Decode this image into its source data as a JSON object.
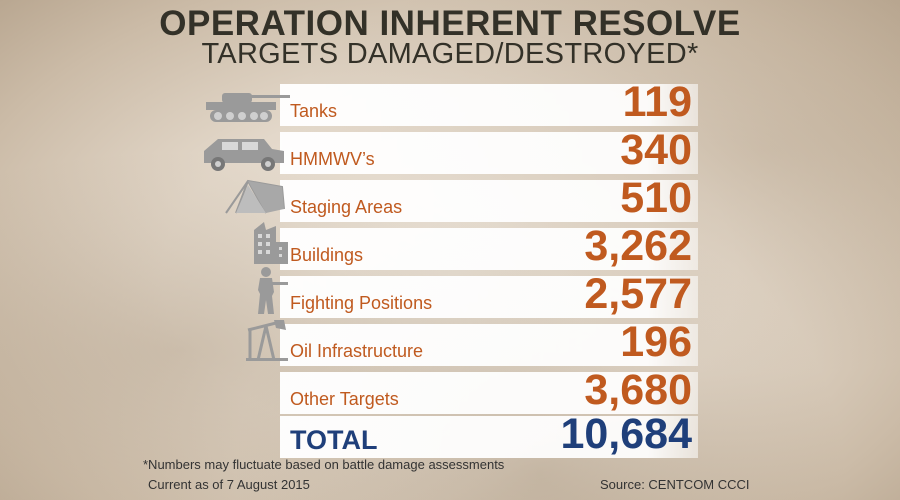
{
  "header": {
    "title": "OPERATION INHERENT RESOLVE",
    "subtitle": "TARGETS DAMAGED/DESTROYED*"
  },
  "rows": [
    {
      "label": "Tanks",
      "value": "119",
      "icon": "tank-icon"
    },
    {
      "label": "HMMWV’s",
      "value": "340",
      "icon": "humvee-icon"
    },
    {
      "label": "Staging Areas",
      "value": "510",
      "icon": "tent-icon"
    },
    {
      "label": "Buildings",
      "value": "3,262",
      "icon": "building-icon"
    },
    {
      "label": "Fighting Positions",
      "value": "2,577",
      "icon": "soldier-icon"
    },
    {
      "label": "Oil Infrastructure",
      "value": "196",
      "icon": "oil-pump-icon"
    },
    {
      "label": "Other Targets",
      "value": "3,680"
    }
  ],
  "total": {
    "label": "TOTAL",
    "value": "10,684"
  },
  "footer": {
    "note": "*Numbers may fluctuate based on battle damage assessments",
    "current": "Current as of 7 August 2015",
    "source": "Source: CENTCOM CCCI"
  },
  "colors": {
    "accent": "#c05a1f",
    "total": "#1f3f7a",
    "title": "#333128"
  }
}
